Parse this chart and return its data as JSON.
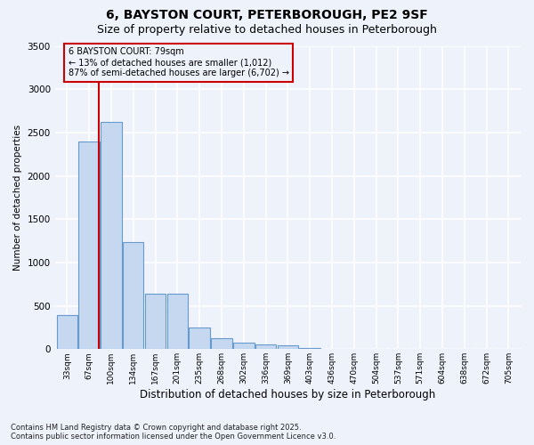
{
  "title_line1": "6, BAYSTON COURT, PETERBOROUGH, PE2 9SF",
  "title_line2": "Size of property relative to detached houses in Peterborough",
  "xlabel": "Distribution of detached houses by size in Peterborough",
  "ylabel": "Number of detached properties",
  "categories": [
    "33sqm",
    "67sqm",
    "100sqm",
    "134sqm",
    "167sqm",
    "201sqm",
    "235sqm",
    "268sqm",
    "302sqm",
    "336sqm",
    "369sqm",
    "403sqm",
    "436sqm",
    "470sqm",
    "504sqm",
    "537sqm",
    "571sqm",
    "604sqm",
    "638sqm",
    "672sqm",
    "705sqm"
  ],
  "values": [
    390,
    2400,
    2620,
    1240,
    640,
    640,
    250,
    130,
    70,
    50,
    40,
    10,
    0,
    0,
    0,
    0,
    0,
    0,
    0,
    0,
    0
  ],
  "bar_color": "#c5d8f0",
  "bar_edge_color": "#6699cc",
  "property_line_x": 1.42,
  "annotation_title": "6 BAYSTON COURT: 79sqm",
  "annotation_line1": "← 13% of detached houses are smaller (1,012)",
  "annotation_line2": "87% of semi-detached houses are larger (6,702) →",
  "annotation_box_color": "#cc0000",
  "ylim": [
    0,
    3500
  ],
  "yticks": [
    0,
    500,
    1000,
    1500,
    2000,
    2500,
    3000,
    3500
  ],
  "footnote1": "Contains HM Land Registry data © Crown copyright and database right 2025.",
  "footnote2": "Contains public sector information licensed under the Open Government Licence v3.0.",
  "background_color": "#eef2fb",
  "grid_color": "#ffffff",
  "title_fontsize": 10,
  "subtitle_fontsize": 9
}
